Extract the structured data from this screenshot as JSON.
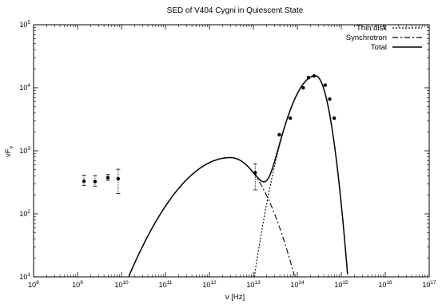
{
  "chart_data": {
    "type": "line",
    "title": "SED of V404 Cygni in Quiescent State",
    "xlabel": "ν [Hz]",
    "ylabel": "νF",
    "ylabel_sub": "ν",
    "xscale": "log",
    "yscale": "log",
    "xlim": [
      100000000.0,
      1e+17
    ],
    "ylim": [
      10,
      100000
    ],
    "x_ticks": [
      {
        "value": 100000000.0,
        "base": "10",
        "exp": "8"
      },
      {
        "value": 1000000000.0,
        "base": "10",
        "exp": "9"
      },
      {
        "value": 10000000000.0,
        "base": "10",
        "exp": "10"
      },
      {
        "value": 100000000000.0,
        "base": "10",
        "exp": "11"
      },
      {
        "value": 1000000000000.0,
        "base": "10",
        "exp": "12"
      },
      {
        "value": 10000000000000.0,
        "base": "10",
        "exp": "13"
      },
      {
        "value": 100000000000000.0,
        "base": "10",
        "exp": "14"
      },
      {
        "value": 1000000000000000.0,
        "base": "10",
        "exp": "15"
      },
      {
        "value": 1e+16,
        "base": "10",
        "exp": "16"
      },
      {
        "value": 1e+17,
        "base": "10",
        "exp": "17"
      }
    ],
    "y_ticks": [
      {
        "value": 10,
        "base": "10",
        "exp": "1"
      },
      {
        "value": 100,
        "base": "10",
        "exp": "2"
      },
      {
        "value": 1000,
        "base": "10",
        "exp": "3"
      },
      {
        "value": 10000,
        "base": "10",
        "exp": "4"
      },
      {
        "value": 100000,
        "base": "10",
        "exp": "5"
      }
    ],
    "legend_position": "top-right",
    "series": [
      {
        "name": "Thin disk",
        "style": "dotted"
      },
      {
        "name": "Synchrotron",
        "style": "dash-dot"
      },
      {
        "name": "Total",
        "style": "solid"
      }
    ],
    "model_params": {
      "synchrotron": {
        "peak_nu": 3000000000000.0,
        "peak_nuFnu": 780,
        "x_lo": 14500000000.0,
        "x_hi": 87000000000000.0
      },
      "thin_disk": {
        "peak_nu": 260000000000000.0,
        "peak_nuFnu": 15500,
        "x_lo": 10500000000000.0,
        "x_hi": 1400000000000000.0
      }
    },
    "points": [
      {
        "x": 1400000000.0,
        "y": 330,
        "err_low": 280,
        "err_high": 410
      },
      {
        "x": 2500000000.0,
        "y": 325,
        "err_low": 275,
        "err_high": 405
      },
      {
        "x": 4900000000.0,
        "y": 375,
        "err_low": 340,
        "err_high": 420
      },
      {
        "x": 8400000000.0,
        "y": 360,
        "err_low": 210,
        "err_high": 510
      },
      {
        "x": 11000000000000.0,
        "y": 450,
        "err_low": 240,
        "err_high": 620
      },
      {
        "x": 39000000000000.0,
        "y": 1800
      },
      {
        "x": 69000000000000.0,
        "y": 3300
      },
      {
        "x": 136000000000000.0,
        "y": 10000
      },
      {
        "x": 180000000000000.0,
        "y": 14500
      },
      {
        "x": 240000000000000.0,
        "y": 15400
      },
      {
        "x": 430000000000000.0,
        "y": 11000
      },
      {
        "x": 545000000000000.0,
        "y": 6600
      },
      {
        "x": 690000000000000.0,
        "y": 3300
      }
    ]
  }
}
